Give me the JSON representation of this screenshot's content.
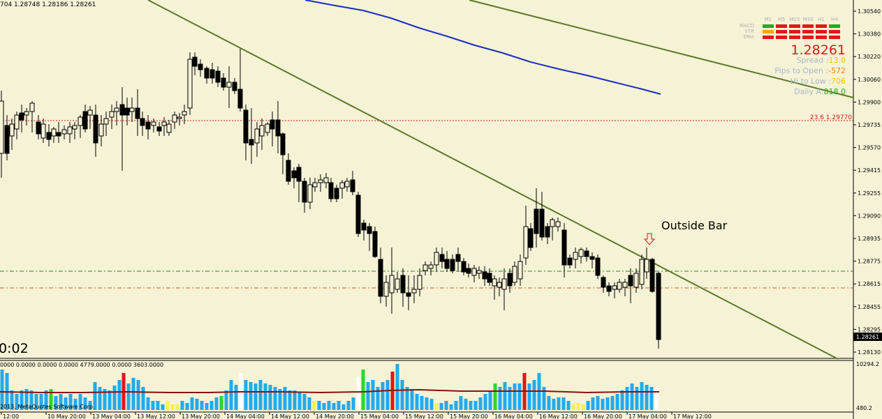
{
  "header": {
    "ohlc_text": "704 1.28748 1.28186 1.28261"
  },
  "price_axis": {
    "ticks": [
      "1.30540",
      "1.30380",
      "1.30220",
      "1.30060",
      "1.29900",
      "1.29735",
      "1.29570",
      "1.29415",
      "1.29255",
      "1.29090",
      "1.28935",
      "1.28775",
      "1.28615",
      "1.28455",
      "1.28295",
      "1.28130"
    ],
    "current_price_label": "1.28261"
  },
  "time_axis": {
    "labels": [
      "12:00",
      "10 May 20:00",
      "13 May 04:00",
      "13 May 12:00",
      "13 May 20:00",
      "14 May 04:00",
      "14 May 12:00",
      "14 May 20:00",
      "15 May 04:00",
      "15 May 12:00",
      "15 May 20:00",
      "16 May 04:00",
      "16 May 12:00",
      "16 May 20:00",
      "17 May 04:00",
      "17 May 12:00"
    ]
  },
  "fib_level": {
    "label": "23.6 1.29770",
    "color": "#d01818"
  },
  "annotation": {
    "text": "Outside Bar"
  },
  "countdown": {
    "text": "0:02"
  },
  "info_panel": {
    "timeframes": [
      "M1",
      "M5",
      "M15",
      "M30",
      "H1",
      "H4"
    ],
    "row_labels": [
      "MACD",
      "STR",
      "EMA"
    ],
    "price": "1.28261",
    "lines": [
      {
        "label": "Spread :",
        "value": "13.0",
        "value_color": "#f2c200"
      },
      {
        "label": "Pips to Open :",
        "value": "-572",
        "value_color": "#ff8000"
      },
      {
        "label": "Hi to Low :",
        "value": "706",
        "value_color": "#f2c200"
      },
      {
        "label": "Daily A:",
        "value": "818.0",
        "value_color": "#1ab01a"
      }
    ]
  },
  "volume_panel": {
    "header_text": "0000 0.0000 0.0000 0.0000 4779.0000 0.0000 3603.0000",
    "axis_top": "10294.2",
    "axis_bottom": "480.2",
    "copyright": "2013, MetaQuotes Software Corp."
  },
  "colors": {
    "background": "#f5f2d6",
    "candle": "#000000",
    "trendline": "#5a7a28",
    "moving_average": "#1a2ec0",
    "support_line": "#1a8a1a",
    "resistance_line": "#e05a20",
    "volume_bar": "#22aaee",
    "volume_ma": "#8a1010"
  }
}
